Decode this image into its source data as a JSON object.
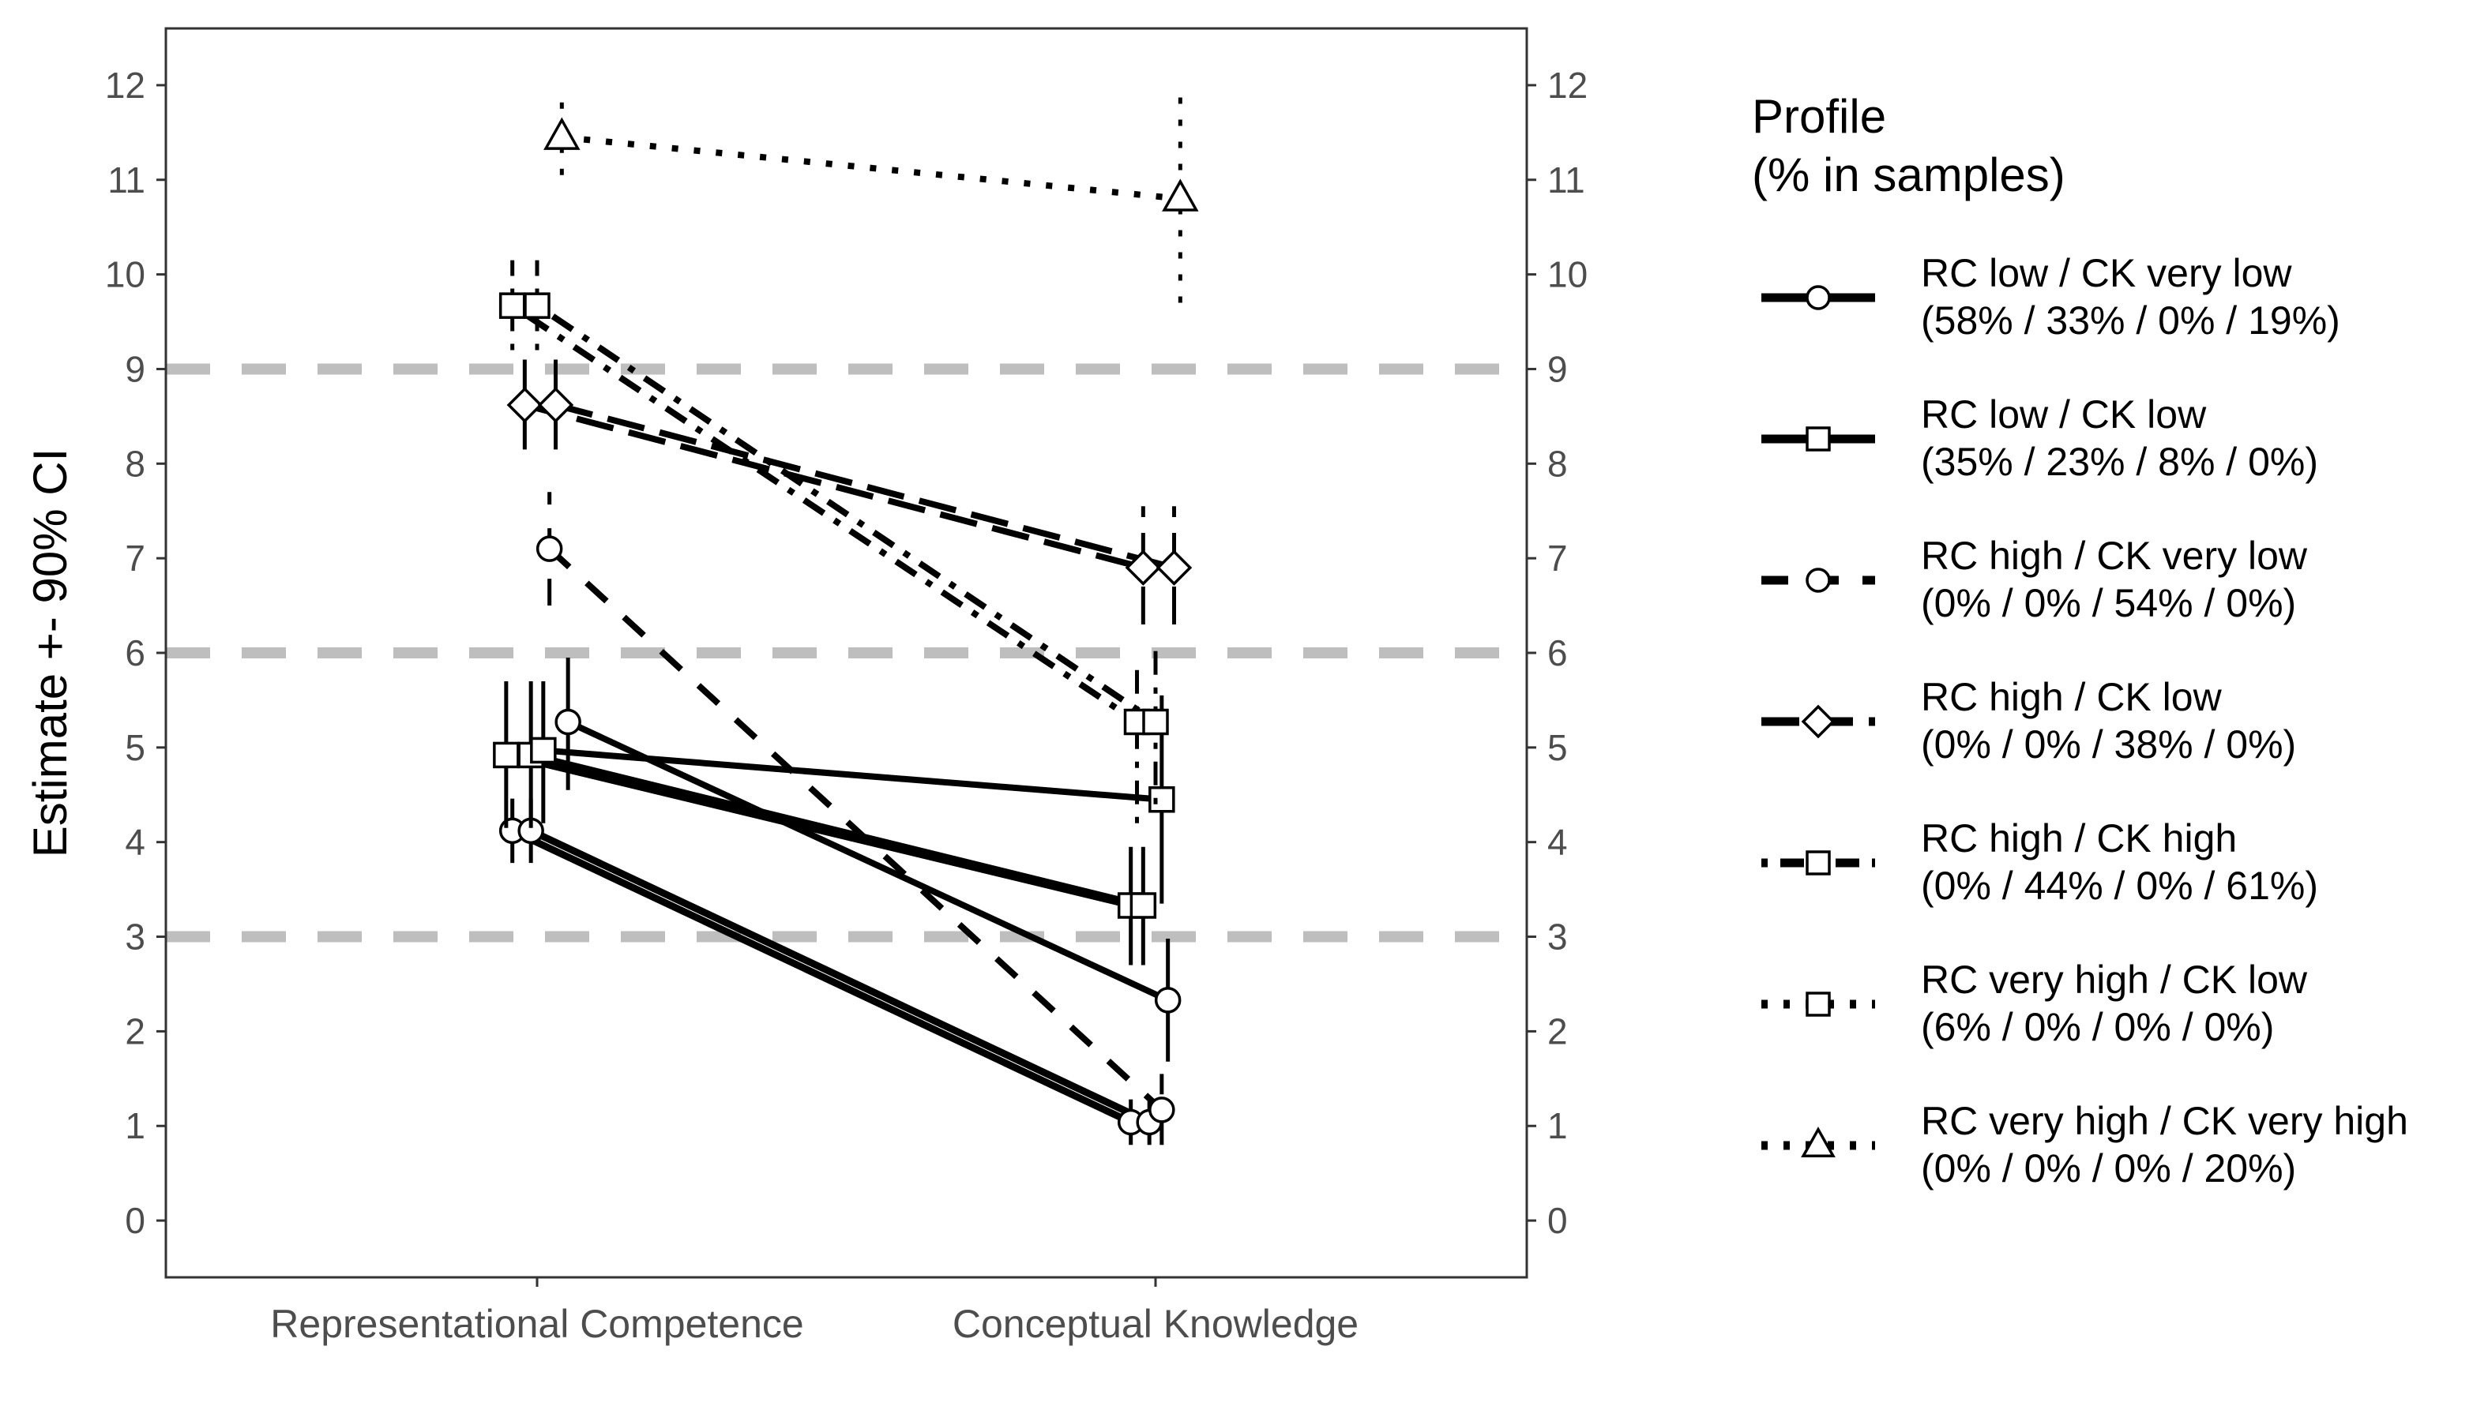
{
  "chart_data": {
    "type": "line",
    "ylabel": "Estimate +- 90% CI",
    "xlabel": "",
    "categories": [
      "Representational Competence",
      "Conceptual Knowledge"
    ],
    "ylim": [
      -0.6,
      12.6
    ],
    "yticks": [
      0,
      1,
      2,
      3,
      4,
      5,
      6,
      7,
      8,
      9,
      10,
      11,
      12
    ],
    "grid": false,
    "reference_lines": [
      3,
      6,
      9
    ],
    "legend": {
      "title": "Profile\n(% in samples)",
      "placement": "right"
    },
    "series": [
      {
        "name": "RC low / CK very low",
        "pct": "(58% / 33% / 0% / 19%)",
        "linetype": "solid",
        "shape": "circle",
        "segments": [
          {
            "x": [
              -0.04,
              0.96
            ],
            "y": [
              4.12,
              1.04
            ],
            "ci": [
              [
                3.78,
                4.46
              ],
              [
                0.8,
                1.28
              ]
            ]
          },
          {
            "x": [
              -0.01,
              0.99
            ],
            "y": [
              4.12,
              1.04
            ],
            "ci": [
              [
                3.78,
                4.46
              ],
              [
                0.8,
                1.28
              ]
            ]
          },
          {
            "x": [
              0.05,
              1.02
            ],
            "y": [
              5.27,
              2.33
            ],
            "ci": [
              [
                4.55,
                5.95
              ],
              [
                1.68,
                2.98
              ]
            ]
          }
        ]
      },
      {
        "name": "RC low / CK low",
        "pct": "(35% / 23% / 8% / 0%)",
        "linetype": "solid",
        "shape": "square",
        "segments": [
          {
            "x": [
              -0.05,
              0.96
            ],
            "y": [
              4.92,
              3.33
            ],
            "ci": [
              [
                4.15,
                5.7
              ],
              [
                2.7,
                3.95
              ]
            ]
          },
          {
            "x": [
              -0.01,
              0.98
            ],
            "y": [
              4.92,
              3.33
            ],
            "ci": [
              [
                4.15,
                5.7
              ],
              [
                2.7,
                3.95
              ]
            ]
          },
          {
            "x": [
              0.01,
              1.01
            ],
            "y": [
              4.97,
              4.45
            ],
            "ci": [
              [
                4.2,
                5.7
              ],
              [
                3.35,
                5.55
              ]
            ]
          }
        ]
      },
      {
        "name": "RC high / CK very low",
        "pct": "(0% / 0% / 54% / 0%)",
        "linetype": "dashed",
        "shape": "circle",
        "segments": [
          {
            "x": [
              0.02,
              1.01
            ],
            "y": [
              7.1,
              1.17
            ],
            "ci": [
              [
                6.5,
                7.7
              ],
              [
                0.8,
                1.55
              ]
            ]
          }
        ]
      },
      {
        "name": "RC high / CK low",
        "pct": "(0% / 0% / 38% / 0%)",
        "linetype": "longdash",
        "shape": "diamond",
        "segments": [
          {
            "x": [
              -0.02,
              0.98
            ],
            "y": [
              8.62,
              6.9
            ],
            "ci": [
              [
                8.15,
                9.1
              ],
              [
                6.3,
                7.55
              ]
            ]
          },
          {
            "x": [
              0.03,
              1.03
            ],
            "y": [
              8.62,
              6.9
            ],
            "ci": [
              [
                8.15,
                9.1
              ],
              [
                6.3,
                7.55
              ]
            ]
          }
        ]
      },
      {
        "name": "RC high / CK high",
        "pct": "(0% / 44% / 0% / 61%)",
        "linetype": "dotdash",
        "shape": "square",
        "segments": [
          {
            "x": [
              -0.04,
              0.97
            ],
            "y": [
              9.67,
              5.27
            ],
            "ci": [
              [
                9.2,
                10.15
              ],
              [
                4.2,
                5.95
              ]
            ]
          },
          {
            "x": [
              0.0,
              1.0
            ],
            "y": [
              9.67,
              5.27
            ],
            "ci": [
              [
                9.2,
                10.15
              ],
              [
                4.4,
                6.15
              ]
            ]
          }
        ]
      },
      {
        "name": "RC very high / CK low",
        "pct": "(6% / 0% / 0% / 0%)",
        "linetype": "dotted",
        "shape": "square",
        "segments": []
      },
      {
        "name": "RC very high / CK very high",
        "pct": "(0% / 0% / 0% / 20%)",
        "linetype": "dotted",
        "shape": "triangle",
        "segments": [
          {
            "x": [
              0.04,
              1.04
            ],
            "y": [
              11.45,
              10.8
            ],
            "ci": [
              [
                11.05,
                11.85
              ],
              [
                9.7,
                11.9
              ]
            ]
          }
        ]
      }
    ]
  }
}
